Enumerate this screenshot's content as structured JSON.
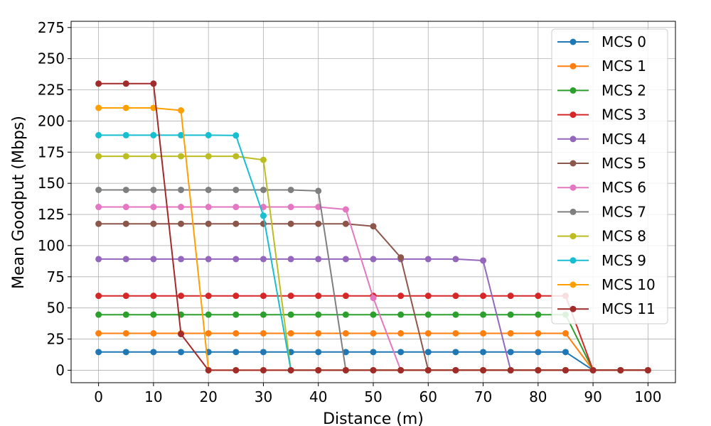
{
  "chart_data": {
    "type": "line",
    "title": "",
    "xlabel": "Distance (m)",
    "ylabel": "Mean Goodput (Mbps)",
    "xlim": [
      -5,
      105
    ],
    "ylim": [
      -10,
      280
    ],
    "xticks": [
      0,
      10,
      20,
      30,
      40,
      50,
      60,
      70,
      80,
      90,
      100
    ],
    "yticks": [
      0,
      25,
      50,
      75,
      100,
      125,
      150,
      175,
      200,
      225,
      250,
      275
    ],
    "grid": true,
    "legend_position": "top-right",
    "x": [
      0,
      5,
      10,
      15,
      20,
      25,
      30,
      35,
      40,
      45,
      50,
      55,
      60,
      65,
      70,
      75,
      80,
      85,
      90,
      95,
      100
    ],
    "series": [
      {
        "name": "MCS 0",
        "color": "#1f77b4",
        "values": [
          14.6,
          14.6,
          14.6,
          14.6,
          14.6,
          14.6,
          14.6,
          14.6,
          14.6,
          14.6,
          14.6,
          14.6,
          14.6,
          14.6,
          14.6,
          14.6,
          14.6,
          14.6,
          0,
          0,
          0
        ]
      },
      {
        "name": "MCS 1",
        "color": "#ff7f0e",
        "values": [
          29.6,
          29.6,
          29.6,
          29.6,
          29.6,
          29.6,
          29.6,
          29.6,
          29.6,
          29.6,
          29.6,
          29.6,
          29.6,
          29.6,
          29.6,
          29.6,
          29.6,
          29.6,
          0,
          0,
          0
        ]
      },
      {
        "name": "MCS 2",
        "color": "#2ca02c",
        "values": [
          44.6,
          44.6,
          44.6,
          44.6,
          44.6,
          44.6,
          44.6,
          44.6,
          44.6,
          44.6,
          44.6,
          44.6,
          44.6,
          44.6,
          44.6,
          44.6,
          44.6,
          44.6,
          0,
          0,
          0
        ]
      },
      {
        "name": "MCS 3",
        "color": "#d62728",
        "values": [
          59.7,
          59.7,
          59.7,
          59.7,
          59.7,
          59.7,
          59.7,
          59.7,
          59.7,
          59.7,
          59.7,
          59.7,
          59.7,
          59.7,
          59.7,
          59.7,
          59.7,
          59.7,
          0,
          0,
          0
        ]
      },
      {
        "name": "MCS 4",
        "color": "#9467bd",
        "values": [
          89.2,
          89.2,
          89.2,
          89.2,
          89.2,
          89.2,
          89.2,
          89.2,
          89.2,
          89.2,
          89.2,
          89.2,
          89.2,
          89.2,
          88,
          0,
          0,
          0,
          0,
          0,
          0
        ]
      },
      {
        "name": "MCS 5",
        "color": "#8c564b",
        "values": [
          117.5,
          117.5,
          117.5,
          117.5,
          117.5,
          117.5,
          117.5,
          117.5,
          117.5,
          117.5,
          115.5,
          90.5,
          0,
          0,
          0,
          0,
          0,
          0,
          0,
          0,
          0
        ]
      },
      {
        "name": "MCS 6",
        "color": "#e377c2",
        "values": [
          131,
          131,
          131,
          131,
          131,
          131,
          131,
          131,
          131,
          129,
          58,
          0,
          0,
          0,
          0,
          0,
          0,
          0,
          0,
          0,
          0
        ]
      },
      {
        "name": "MCS 7",
        "color": "#7f7f7f",
        "values": [
          144.7,
          144.7,
          144.7,
          144.7,
          144.7,
          144.7,
          144.7,
          144.7,
          143.9,
          0,
          0,
          0,
          0,
          0,
          0,
          0,
          0,
          0,
          0,
          0,
          0
        ]
      },
      {
        "name": "MCS 8",
        "color": "#bcbd22",
        "values": [
          171.7,
          171.7,
          171.7,
          171.7,
          171.7,
          171.7,
          168.8,
          0,
          0,
          0,
          0,
          0,
          0,
          0,
          0,
          0,
          0,
          0,
          0,
          0,
          0
        ]
      },
      {
        "name": "MCS 9",
        "color": "#17becf",
        "values": [
          188.6,
          188.6,
          188.6,
          188.6,
          188.6,
          188.4,
          124,
          0,
          0,
          0,
          0,
          0,
          0,
          0,
          0,
          0,
          0,
          0,
          0,
          0,
          0
        ]
      },
      {
        "name": "MCS 10",
        "color": "#ff9f00",
        "values": [
          210.5,
          210.5,
          210.5,
          208.5,
          0,
          0,
          0,
          0,
          0,
          0,
          0,
          0,
          0,
          0,
          0,
          0,
          0,
          0,
          0,
          0,
          0
        ]
      },
      {
        "name": "MCS 11",
        "color": "#a12a2a",
        "values": [
          230,
          230,
          230,
          29,
          0,
          0,
          0,
          0,
          0,
          0,
          0,
          0,
          0,
          0,
          0,
          0,
          0,
          0,
          0,
          0,
          0
        ]
      }
    ]
  }
}
